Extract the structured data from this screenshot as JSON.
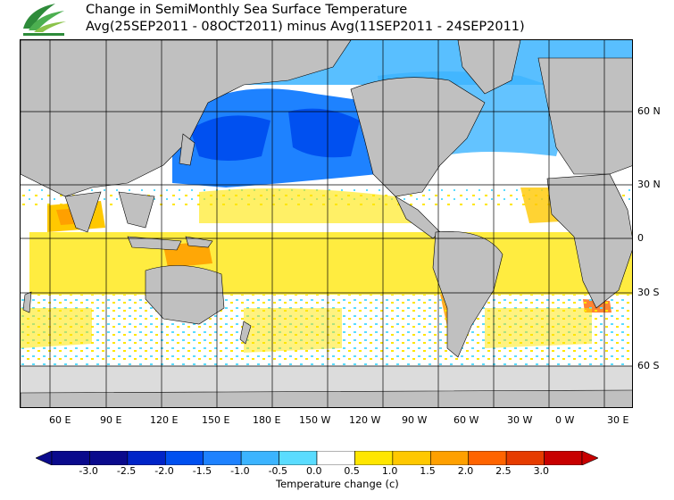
{
  "title": {
    "line1": "Change in SemiMonthly Sea Surface Temperature",
    "line2": "Avg(25SEP2011 - 08OCT2011) minus Avg(11SEP2011 - 24SEP2011)"
  },
  "map": {
    "lon_labels": [
      "60 E",
      "90 E",
      "120 E",
      "150 E",
      "180 E",
      "150 W",
      "120 W",
      "90 W",
      "60 W",
      "30 W",
      "0 W",
      "30 E"
    ],
    "lat_labels": [
      "60 N",
      "30 N",
      "0",
      "30 S",
      "60 S"
    ],
    "land_color": "#c0c0c0",
    "sea_ice_color": "#dcdcdc",
    "grid_color": "#000000"
  },
  "colorbar": {
    "title": "Temperature change  (c)",
    "ticks": [
      "-3.0",
      "-2.5",
      "-2.0",
      "-1.5",
      "-1.0",
      "-0.5",
      "0.0",
      "0.5",
      "1.0",
      "1.5",
      "2.0",
      "2.5",
      "3.0"
    ],
    "colors": [
      "#0a0a8c",
      "#0024c8",
      "#0050f0",
      "#1e82ff",
      "#3cb4ff",
      "#5adcff",
      "#ffffff",
      "#ffe600",
      "#ffc800",
      "#ffa000",
      "#ff6400",
      "#e63c00",
      "#c80000"
    ]
  }
}
